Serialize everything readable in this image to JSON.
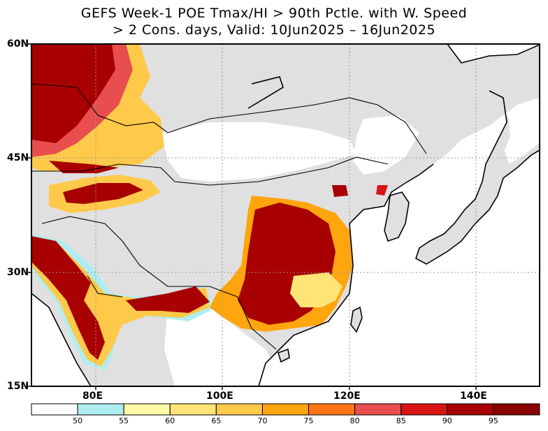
{
  "title": {
    "line1": "GEFS Week-1 POE Tmax/HI > 90th Pctle. with W. Speed",
    "line2": "> 2 Cons. days, Valid: 10Jun2025 – 16Jun2025"
  },
  "map": {
    "lat_labels": [
      "60N",
      "45N",
      "30N",
      "15N"
    ],
    "lon_labels": [
      "80E",
      "100E",
      "120E",
      "140E"
    ],
    "land_color": "#e0e0e0",
    "water_color": "#ffffff"
  },
  "colorbar": {
    "labels": [
      "50",
      "55",
      "60",
      "65",
      "70",
      "75",
      "80",
      "85",
      "90",
      "95"
    ],
    "colors": [
      "#ffffff",
      "#aeeef2",
      "#fffaa8",
      "#ffe477",
      "#ffc94a",
      "#ffa50e",
      "#ff7415",
      "#e84e4e",
      "#d81414",
      "#a80000",
      "#8a0000"
    ]
  }
}
